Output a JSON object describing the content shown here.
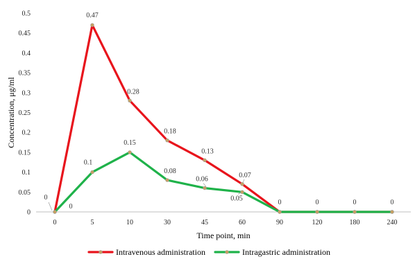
{
  "chart_data": {
    "type": "line",
    "categories": [
      "0",
      "5",
      "10",
      "30",
      "45",
      "60",
      "90",
      "120",
      "180",
      "240"
    ],
    "series": [
      {
        "name": "Intravenous administration",
        "color": "#e8141c",
        "values": [
          0,
          0.47,
          0.28,
          0.18,
          0.13,
          0.07,
          0,
          0,
          0,
          0
        ],
        "labels": [
          "0",
          "0.47",
          "0.28",
          "0.18",
          "0.13",
          "0.07",
          "0",
          "0",
          "0",
          "0"
        ]
      },
      {
        "name": "Intragastric administration",
        "color": "#1fb24a",
        "values": [
          0,
          0.1,
          0.15,
          0.08,
          0.06,
          0.05,
          0,
          0,
          0,
          0
        ],
        "labels": [
          "0",
          "0.1",
          "0.15",
          "0.08",
          "0.06",
          "0.05",
          "",
          "",
          "",
          ""
        ]
      }
    ],
    "xlabel": "Time point, min",
    "ylabel": "Concentration, μg/ml",
    "ylim": [
      0,
      0.5
    ],
    "yticks": [
      "0",
      "0.05",
      "0.1",
      "0.15",
      "0.2",
      "0.25",
      "0.3",
      "0.35",
      "0.4",
      "0.45",
      "0.5"
    ],
    "marker_color": "#c8a060",
    "grid": false,
    "legend": "bottom"
  }
}
